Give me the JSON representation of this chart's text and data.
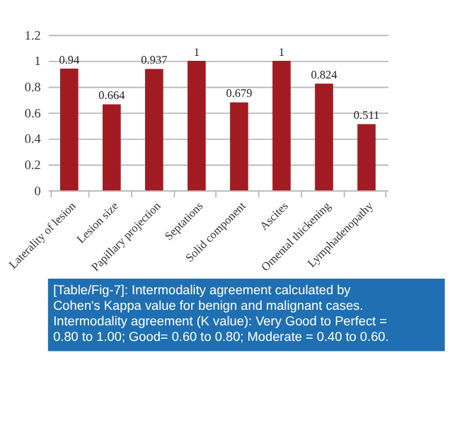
{
  "chart_data": {
    "type": "bar",
    "categories": [
      "Laterality of lesion",
      "Lesion size",
      "Papillary projection",
      "Septations",
      "Solid component",
      "Ascites",
      "Omental thickening",
      "Lymphadenopathy"
    ],
    "values": [
      0.94,
      0.664,
      0.937,
      1,
      0.679,
      1,
      0.824,
      0.511
    ],
    "color": "#a31b22",
    "ylim": [
      0,
      1.2
    ],
    "yticks": [
      0,
      0.2,
      0.4,
      0.6,
      0.8,
      1,
      1.2
    ],
    "grid": "y",
    "data_labels": true,
    "annotations": [
      "[Table/Fig-7]: Intermodality agreement calculated by Cohen's Kappa value for benign and malignant cases. Intermodality agreement (K value): Very Good to Perfect = 0.80 to 1.00; Good= 0.60 to 0.80; Moderate = 0.40 to 0.60."
    ]
  }
}
